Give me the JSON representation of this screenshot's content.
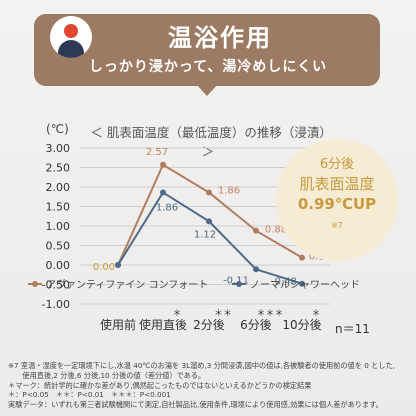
{
  "banner": {
    "title": "温浴作用",
    "subtitle": "しっかり浸かって、湯冷めしにくい",
    "color": "#9d7a63",
    "avatar_icon": "person-avatar-icon"
  },
  "chart_data": {
    "type": "line",
    "title": "＜ 肌表面温度（最低温度）の推移（浸漬）＞",
    "ylabel": "(℃)",
    "xlabel": "",
    "ylim": [
      -1.0,
      3.0
    ],
    "yticks": [
      "3.00",
      "2.50",
      "2.00",
      "1.50",
      "1.00",
      "0.50",
      "0.00",
      "-0.50",
      "-1.00"
    ],
    "grid": true,
    "categories": [
      "使用前",
      "使用直後",
      "2分後",
      "6分後",
      "10分後"
    ],
    "significance": [
      "",
      "＊",
      "＊＊",
      "＊＊＊",
      "＊"
    ],
    "series": [
      {
        "name": "アヴァンティファイン コンフォート",
        "values": [
          0.0,
          2.57,
          1.86,
          0.88,
          0.19
        ],
        "labels": [
          "0.00",
          "2.57",
          "1.86",
          "0.88",
          "0.19"
        ],
        "color": "#b07e5f"
      },
      {
        "name": "ノーマルシャワーヘッド",
        "values": [
          0.0,
          1.86,
          1.12,
          -0.11,
          -0.48
        ],
        "labels": [
          "",
          "1.86",
          "1.12",
          "-0.11",
          "-0.48"
        ],
        "color": "#4e6a88"
      }
    ],
    "legend_position": "bottom"
  },
  "sample_size": "n＝11",
  "callout": {
    "line1": "6分後",
    "line2": "肌表面温度",
    "line3": "0.99℃UP",
    "note": "※7",
    "color": "#c79a40"
  },
  "footnotes": [
    "※7 室温・湿度を一定環境下にし,水温 40℃のお湯を 3L溜め,3 分間浸漬,図中の値は,各被験者の使用前の値を 0 とした,",
    "　　使用直後,2 分後,6 分後,10 分後の値（差分値）である。",
    "＊マーク：統計学的に確かな差があり,偶然起こったものではないといえるかどうかの検定結果",
    "＊：P<0.05　＊＊：P<0.01　＊＊＊：P<0.001",
    "実験データ：いずれも第三者試験機関にて測定,自社製品比,使用条件,環境により使用感,効果には個人差があります。"
  ]
}
